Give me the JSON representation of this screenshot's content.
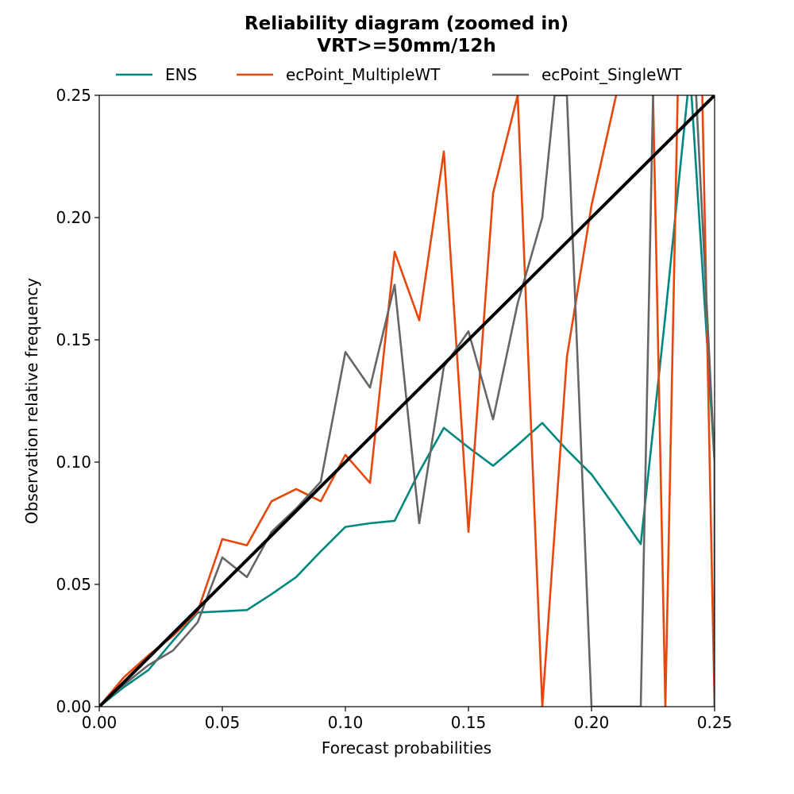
{
  "chart_data": {
    "type": "line",
    "title_line1": "Reliability diagram (zoomed in)",
    "title_line2": "VRT>=50mm/12h",
    "xlabel": "Forecast probabilities",
    "ylabel": "Observation relative frequency",
    "xlim": [
      0,
      0.25
    ],
    "ylim": [
      0,
      0.25
    ],
    "x_ticks": [
      "0.00",
      "0.05",
      "0.10",
      "0.15",
      "0.20",
      "0.25"
    ],
    "y_ticks": [
      "0.00",
      "0.05",
      "0.10",
      "0.15",
      "0.20",
      "0.25"
    ],
    "grid": false,
    "legend_position": "top",
    "series": [
      {
        "name": "ENS",
        "color": "#00877f",
        "x": [
          0,
          0.01,
          0.02,
          0.03,
          0.04,
          0.05,
          0.06,
          0.07,
          0.08,
          0.09,
          0.1,
          0.11,
          0.12,
          0.13,
          0.14,
          0.15,
          0.16,
          0.17,
          0.18,
          0.19,
          0.2,
          0.21,
          0.22,
          0.23,
          0.24,
          0.25
        ],
        "y": [
          0,
          0.008,
          0.015,
          0.027,
          0.0385,
          0.039,
          0.0395,
          0.046,
          0.053,
          0.0635,
          0.0735,
          0.075,
          0.076,
          0.096,
          0.114,
          0.106,
          0.0985,
          0.107,
          0.116,
          0.105,
          0.095,
          0.081,
          0.0665,
          0.16,
          0.26,
          0.1
        ]
      },
      {
        "name": "ecPoint_MultipleWT",
        "color": "#e8470c",
        "x": [
          0,
          0.01,
          0.02,
          0.03,
          0.04,
          0.05,
          0.06,
          0.07,
          0.08,
          0.09,
          0.1,
          0.11,
          0.12,
          0.13,
          0.14,
          0.15,
          0.16,
          0.17,
          0.18,
          0.19,
          0.2,
          0.21,
          0.22,
          0.225,
          0.23,
          0.235,
          0.24,
          0.245,
          0.25
        ],
        "y": [
          0,
          0.012,
          0.021,
          0.029,
          0.039,
          0.0685,
          0.066,
          0.084,
          0.089,
          0.084,
          0.103,
          0.0915,
          0.186,
          0.158,
          0.227,
          0.0715,
          0.21,
          0.25,
          0,
          0.143,
          0.205,
          0.25,
          0.3,
          0.25,
          0,
          0.25,
          0.3,
          0.25,
          0
        ]
      },
      {
        "name": "ecPoint_SingleWT",
        "color": "#666666",
        "x": [
          0,
          0.01,
          0.02,
          0.03,
          0.04,
          0.05,
          0.06,
          0.07,
          0.08,
          0.09,
          0.1,
          0.11,
          0.12,
          0.13,
          0.14,
          0.15,
          0.16,
          0.17,
          0.18,
          0.185,
          0.19,
          0.2,
          0.21,
          0.22,
          0.225,
          0.23,
          0.24,
          0.25,
          0.25
        ],
        "y": [
          0,
          0.009,
          0.017,
          0.023,
          0.0345,
          0.061,
          0.053,
          0.0715,
          0.081,
          0.092,
          0.145,
          0.1305,
          0.1725,
          0.075,
          0.139,
          0.1535,
          0.1175,
          0.165,
          0.2,
          0.25,
          0.25,
          0,
          0,
          0,
          0.25,
          0.3,
          0.3,
          0.1,
          0
        ]
      },
      {
        "name": "",
        "color": "#000000",
        "x": [
          0,
          0.25
        ],
        "y": [
          0,
          0.25
        ]
      }
    ]
  }
}
